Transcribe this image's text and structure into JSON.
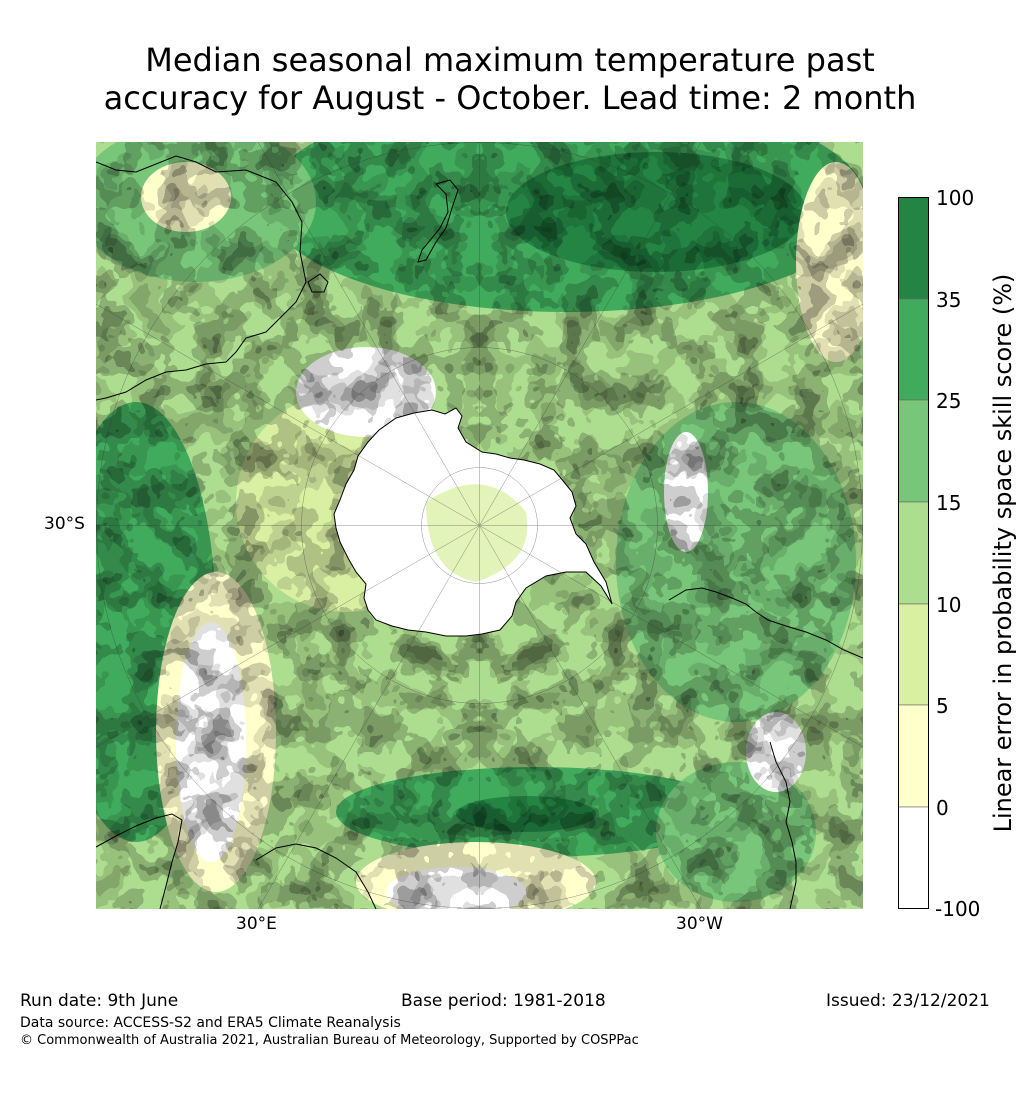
{
  "title": {
    "line1": "Median seasonal maximum temperature past",
    "line2": "accuracy for August - October. Lead time: 2 month"
  },
  "map": {
    "projection": "south-polar-stereographic",
    "lat_labels": [
      "30°S"
    ],
    "lon_labels": [
      "30°E",
      "30°W"
    ]
  },
  "colorbar": {
    "label": "Linear error in probability space skill score (%)",
    "ticks": [
      "100",
      "35",
      "25",
      "15",
      "10",
      "5",
      "0",
      "-100"
    ],
    "bins": [
      {
        "range": "-100 to 0",
        "color": "#ffffff"
      },
      {
        "range": "0 to 5",
        "color": "#ffffcc"
      },
      {
        "range": "5 to 10",
        "color": "#d9f0a3"
      },
      {
        "range": "10 to 15",
        "color": "#addd8e"
      },
      {
        "range": "15 to 25",
        "color": "#78c679"
      },
      {
        "range": "25 to 35",
        "color": "#41ab5d"
      },
      {
        "range": "35 to 100",
        "color": "#238443"
      }
    ]
  },
  "footer": {
    "run_date": "Run date: 9th June",
    "base_period": "Base period: 1981-2018",
    "issued": "Issued: 23/12/2021",
    "data_source": "Data source: ACCESS-S2 and ERA5 Climate Reanalysis",
    "copyright": "© Commonwealth of Australia 2021, Australian Bureau of Meteorology, Supported by COSPPac"
  }
}
